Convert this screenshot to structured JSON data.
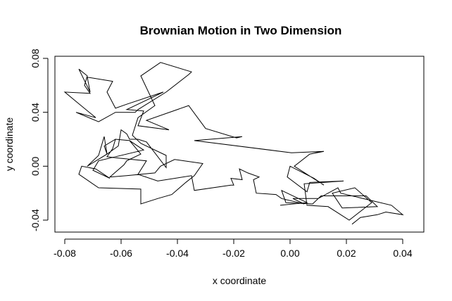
{
  "chart_data": {
    "type": "line",
    "title": "Brownian Motion in Two Dimension",
    "xlabel": "x coordinate",
    "ylabel": "y coordinate",
    "xlim": [
      -0.08,
      0.04
    ],
    "ylim": [
      -0.04,
      0.08
    ],
    "xticks": [
      -0.08,
      -0.06,
      -0.04,
      -0.02,
      0.0,
      0.02,
      0.04
    ],
    "xtick_labels": [
      "-0.08",
      "-0.06",
      "-0.04",
      "-0.02",
      "0.00",
      "0.02",
      "0.04"
    ],
    "yticks": [
      -0.04,
      0.0,
      0.04,
      0.08
    ],
    "ytick_labels": [
      "-0.04",
      "0.00",
      "0.04",
      "0.08"
    ],
    "grid": false,
    "color": "#000000",
    "series": [
      {
        "points": [
          [
            -0.0035,
            -0.029
          ],
          [
            0.006,
            -0.027
          ],
          [
            -0.003,
            -0.018
          ],
          [
            -0.0015,
            -0.027
          ],
          [
            0.008,
            -0.028
          ],
          [
            0.011,
            -0.022
          ],
          [
            0.027,
            -0.022
          ],
          [
            0.031,
            -0.03
          ],
          [
            0.0185,
            -0.031
          ],
          [
            0.015,
            -0.02
          ],
          [
            0.023,
            -0.016
          ],
          [
            0.029,
            -0.027
          ],
          [
            0.021,
            -0.04
          ],
          [
            0.0135,
            -0.03
          ],
          [
            0.006,
            -0.029
          ],
          [
            0.005,
            -0.013
          ],
          [
            0.019,
            -0.011
          ],
          [
            0.007,
            -0.012
          ],
          [
            0.006,
            -0.019
          ],
          [
            -0.001,
            -0.008
          ],
          [
            0.0,
            0.0
          ],
          [
            0.0085,
            -0.009
          ],
          [
            0.012,
            -0.014
          ],
          [
            0.0015,
            0.0
          ],
          [
            0.007,
            0.009
          ],
          [
            0.012,
            0.011
          ],
          [
            0.0005,
            0.01
          ],
          [
            -0.034,
            0.019
          ],
          [
            -0.017,
            0.022
          ],
          [
            -0.019,
            0.021
          ],
          [
            -0.03,
            0.028
          ],
          [
            -0.036,
            0.045
          ],
          [
            -0.051,
            0.034
          ],
          [
            -0.043,
            0.027
          ],
          [
            -0.054,
            0.03
          ],
          [
            -0.052,
            0.041
          ],
          [
            -0.058,
            0.042
          ],
          [
            -0.045,
            0.055
          ],
          [
            -0.058,
            0.046
          ],
          [
            -0.062,
            0.043
          ],
          [
            -0.065,
            0.055
          ],
          [
            -0.063,
            0.063
          ],
          [
            -0.072,
            0.066
          ],
          [
            -0.071,
            0.055
          ],
          [
            -0.075,
            0.072
          ],
          [
            -0.072,
            0.067
          ],
          [
            -0.073,
            0.06
          ],
          [
            -0.071,
            0.054
          ],
          [
            -0.08,
            0.055
          ],
          [
            -0.076,
            0.048
          ],
          [
            -0.069,
            0.036
          ],
          [
            -0.076,
            0.04
          ],
          [
            -0.068,
            0.033
          ],
          [
            -0.062,
            0.04
          ],
          [
            -0.055,
            0.04
          ],
          [
            -0.054,
            0.042
          ],
          [
            -0.044,
            0.055
          ],
          [
            -0.036,
            0.068
          ],
          [
            -0.035,
            0.07
          ],
          [
            -0.046,
            0.077
          ],
          [
            -0.053,
            0.067
          ],
          [
            -0.048,
            0.045
          ],
          [
            -0.054,
            0.036
          ],
          [
            -0.056,
            0.023
          ],
          [
            -0.053,
            0.017
          ],
          [
            -0.044,
            0.008
          ],
          [
            -0.044,
            -0.001
          ],
          [
            -0.051,
            0.018
          ],
          [
            -0.054,
            0.02
          ],
          [
            -0.057,
            0.02
          ],
          [
            -0.058,
            0.024
          ],
          [
            -0.06,
            0.027
          ],
          [
            -0.061,
            0.015
          ],
          [
            -0.065,
            0.009
          ],
          [
            -0.066,
            0.022
          ],
          [
            -0.068,
            0.008
          ],
          [
            -0.072,
            0.0
          ],
          [
            -0.065,
            0.009
          ],
          [
            -0.066,
            0.015
          ],
          [
            -0.062,
            0.02
          ],
          [
            -0.057,
            0.019
          ],
          [
            -0.052,
            0.012
          ],
          [
            -0.068,
            0.004
          ],
          [
            -0.07,
            -0.003
          ],
          [
            -0.064,
            -0.009
          ],
          [
            -0.069,
            -0.002
          ],
          [
            -0.074,
            0.0
          ],
          [
            -0.075,
            -0.006
          ],
          [
            -0.068,
            -0.016
          ],
          [
            -0.053,
            -0.017
          ],
          [
            -0.053,
            -0.028
          ],
          [
            -0.047,
            -0.024
          ],
          [
            -0.042,
            -0.021
          ],
          [
            -0.037,
            -0.012
          ],
          [
            -0.034,
            -0.007
          ],
          [
            -0.031,
            0.002
          ],
          [
            -0.041,
            0.005
          ],
          [
            -0.046,
            0.0
          ],
          [
            -0.048,
            -0.005
          ],
          [
            -0.058,
            -0.007
          ],
          [
            -0.064,
            -0.008
          ],
          [
            -0.059,
            0.001
          ],
          [
            -0.058,
            0.004
          ],
          [
            -0.053,
            0.009
          ],
          [
            -0.057,
            0.019
          ],
          [
            -0.062,
            0.02
          ],
          [
            -0.063,
            0.013
          ],
          [
            -0.065,
            0.007
          ],
          [
            -0.061,
            0.006
          ],
          [
            -0.056,
            0.005
          ],
          [
            -0.051,
            0.004
          ],
          [
            -0.054,
            -0.006
          ],
          [
            -0.047,
            -0.011
          ],
          [
            -0.035,
            -0.007
          ],
          [
            -0.034,
            -0.018
          ],
          [
            -0.021,
            -0.014
          ],
          [
            -0.02,
            -0.014
          ],
          [
            -0.021,
            -0.009
          ],
          [
            -0.017,
            -0.01
          ],
          [
            -0.018,
            -0.002
          ],
          [
            -0.015,
            -0.005
          ],
          [
            -0.011,
            -0.008
          ],
          [
            -0.013,
            -0.01
          ],
          [
            -0.012,
            -0.02
          ],
          [
            -0.005,
            -0.021
          ],
          [
            -0.003,
            -0.024
          ],
          [
            0.005,
            -0.028
          ],
          [
            0.001,
            -0.024
          ],
          [
            0.01,
            -0.024
          ],
          [
            0.017,
            -0.016
          ],
          [
            0.018,
            -0.02
          ],
          [
            0.036,
            -0.029
          ],
          [
            0.04,
            -0.036
          ],
          [
            0.034,
            -0.034
          ],
          [
            0.031,
            -0.036
          ],
          [
            0.025,
            -0.038
          ],
          [
            0.022,
            -0.043
          ]
        ]
      }
    ]
  }
}
